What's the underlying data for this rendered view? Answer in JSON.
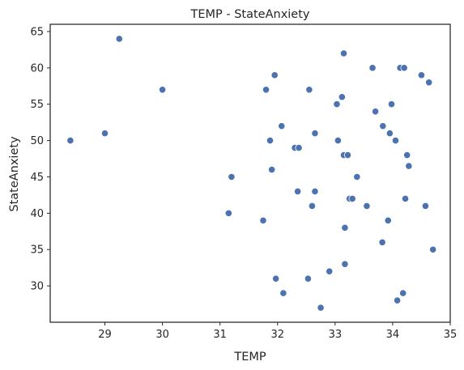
{
  "chart_data": {
    "type": "scatter",
    "title": "TEMP - StateAnxiety",
    "xlabel": "TEMP",
    "ylabel": "StateAnxiety",
    "xlim": [
      28.05,
      35.0
    ],
    "ylim": [
      25.0,
      66.0
    ],
    "xticks": [
      29,
      30,
      31,
      32,
      33,
      34,
      35
    ],
    "yticks": [
      30,
      35,
      40,
      45,
      50,
      55,
      60,
      65
    ],
    "grid": false,
    "marker_color": "#4c72b0",
    "points": [
      {
        "x": 28.4,
        "y": 50
      },
      {
        "x": 29.0,
        "y": 51
      },
      {
        "x": 29.25,
        "y": 64
      },
      {
        "x": 30.0,
        "y": 57
      },
      {
        "x": 31.15,
        "y": 40
      },
      {
        "x": 31.2,
        "y": 45
      },
      {
        "x": 31.75,
        "y": 39
      },
      {
        "x": 31.8,
        "y": 57
      },
      {
        "x": 31.87,
        "y": 50
      },
      {
        "x": 31.9,
        "y": 46
      },
      {
        "x": 31.95,
        "y": 59
      },
      {
        "x": 31.97,
        "y": 31
      },
      {
        "x": 32.07,
        "y": 52
      },
      {
        "x": 32.1,
        "y": 29
      },
      {
        "x": 32.3,
        "y": 49
      },
      {
        "x": 32.35,
        "y": 43
      },
      {
        "x": 32.37,
        "y": 49
      },
      {
        "x": 32.53,
        "y": 31
      },
      {
        "x": 32.55,
        "y": 57
      },
      {
        "x": 32.6,
        "y": 41
      },
      {
        "x": 32.65,
        "y": 51
      },
      {
        "x": 32.65,
        "y": 43
      },
      {
        "x": 32.75,
        "y": 27
      },
      {
        "x": 32.9,
        "y": 32
      },
      {
        "x": 33.03,
        "y": 55
      },
      {
        "x": 33.05,
        "y": 50
      },
      {
        "x": 33.12,
        "y": 56
      },
      {
        "x": 33.15,
        "y": 62
      },
      {
        "x": 33.15,
        "y": 48
      },
      {
        "x": 33.17,
        "y": 38
      },
      {
        "x": 33.17,
        "y": 33
      },
      {
        "x": 33.22,
        "y": 48
      },
      {
        "x": 33.25,
        "y": 42
      },
      {
        "x": 33.3,
        "y": 42
      },
      {
        "x": 33.38,
        "y": 45
      },
      {
        "x": 33.55,
        "y": 41
      },
      {
        "x": 33.65,
        "y": 60
      },
      {
        "x": 33.7,
        "y": 54
      },
      {
        "x": 33.82,
        "y": 36
      },
      {
        "x": 33.83,
        "y": 52
      },
      {
        "x": 33.92,
        "y": 39
      },
      {
        "x": 33.95,
        "y": 51
      },
      {
        "x": 33.98,
        "y": 55
      },
      {
        "x": 34.05,
        "y": 50
      },
      {
        "x": 34.08,
        "y": 28
      },
      {
        "x": 34.13,
        "y": 60
      },
      {
        "x": 34.2,
        "y": 60
      },
      {
        "x": 34.18,
        "y": 29
      },
      {
        "x": 34.22,
        "y": 42
      },
      {
        "x": 34.25,
        "y": 48
      },
      {
        "x": 34.28,
        "y": 46.5
      },
      {
        "x": 34.5,
        "y": 59
      },
      {
        "x": 34.57,
        "y": 41
      },
      {
        "x": 34.63,
        "y": 58
      },
      {
        "x": 34.7,
        "y": 35
      }
    ]
  }
}
